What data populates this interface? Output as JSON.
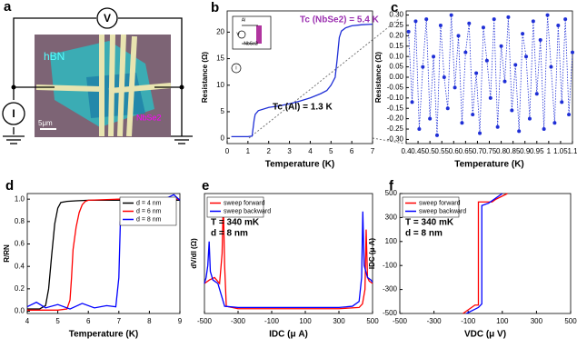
{
  "panel_a": {
    "panel": "a",
    "meter_v": "V",
    "meter_i": "I",
    "hbn": "hBN",
    "nbse2": "NbSe2",
    "scale": "5μm"
  },
  "chart_data": [
    {
      "type": "line",
      "panel": "b",
      "xlabel": "Temperature (K)",
      "ylabel": "Resistance (Ω)",
      "xlim": [
        0,
        7
      ],
      "xticks": [
        0,
        1,
        2,
        3,
        4,
        5,
        6,
        7
      ],
      "ylim": [
        -1,
        24
      ],
      "yticks": [
        0,
        5,
        10,
        15,
        20
      ],
      "annotations": [
        "Tc (NbSe2) = 5.4 K",
        "Tc (Al) = 1.3 K"
      ],
      "inset_labels": [
        "Al",
        "V",
        "I",
        "NbSe2"
      ],
      "series": [
        {
          "color": "#1f2fd6",
          "x": [
            0.2,
            0.5,
            1.0,
            1.2,
            1.3,
            1.35,
            1.5,
            2,
            2.5,
            3,
            3.5,
            4,
            4.5,
            4.8,
            5.0,
            5.2,
            5.3,
            5.4,
            5.5,
            5.7,
            6,
            6.5,
            7
          ],
          "values": [
            0.3,
            0.3,
            0.3,
            0.4,
            3.5,
            4.5,
            5.2,
            5.8,
            6.1,
            6.5,
            7.0,
            7.6,
            8.4,
            9.0,
            10.0,
            11.5,
            15,
            19,
            20.2,
            20.8,
            21.2,
            21.4,
            21.5
          ]
        }
      ]
    },
    {
      "type": "line",
      "panel": "c",
      "xlabel": "Temperature (K)",
      "ylabel": "Resistance (Ω)",
      "line_style": "dotted",
      "markers": true,
      "xlim": [
        0.4,
        1.1
      ],
      "xticks": [
        0.4,
        0.45,
        0.5,
        0.55,
        0.6,
        0.65,
        0.7,
        0.75,
        0.8,
        0.85,
        0.9,
        0.95,
        1,
        1.05,
        1.1
      ],
      "ylim": [
        -0.32,
        0.32
      ],
      "yticks": [
        {
          "value": -0.3,
          "label": "-0.30"
        },
        {
          "value": -0.25,
          "label": "-0.25"
        },
        {
          "value": -0.2,
          "label": "-0.20"
        },
        {
          "value": -0.15,
          "label": "-0.15"
        },
        {
          "value": -0.1,
          "label": "-0.10"
        },
        {
          "value": -0.05,
          "label": "-0.05"
        },
        {
          "value": 0,
          "label": "0.00"
        },
        {
          "value": 0.05,
          "label": "0.05"
        },
        {
          "value": 0.1,
          "label": "0.10"
        },
        {
          "value": 0.15,
          "label": "0.15"
        },
        {
          "value": 0.2,
          "label": "0.20"
        },
        {
          "value": 0.25,
          "label": "0.25"
        },
        {
          "value": 0.3,
          "label": "0.30"
        }
      ],
      "series": [
        {
          "color": "#1f2fd6",
          "x": [
            0.41,
            0.425,
            0.44,
            0.455,
            0.47,
            0.485,
            0.5,
            0.515,
            0.53,
            0.545,
            0.56,
            0.575,
            0.59,
            0.605,
            0.62,
            0.635,
            0.65,
            0.665,
            0.68,
            0.695,
            0.71,
            0.725,
            0.74,
            0.755,
            0.77,
            0.785,
            0.8,
            0.815,
            0.83,
            0.845,
            0.86,
            0.875,
            0.89,
            0.905,
            0.92,
            0.935,
            0.95,
            0.965,
            0.98,
            0.995,
            1.01,
            1.025,
            1.04,
            1.055,
            1.07,
            1.085,
            1.1
          ],
          "values": [
            0.22,
            -0.12,
            0.27,
            -0.25,
            0.05,
            0.28,
            -0.2,
            0.1,
            -0.28,
            0.25,
            0.0,
            -0.15,
            0.3,
            -0.05,
            0.2,
            -0.22,
            0.12,
            0.26,
            -0.18,
            0.02,
            -0.27,
            0.24,
            0.08,
            -0.1,
            0.28,
            -0.24,
            0.15,
            -0.02,
            0.29,
            -0.16,
            0.06,
            -0.26,
            0.21,
            0.1,
            -0.2,
            0.27,
            -0.08,
            0.18,
            -0.25,
            0.3,
            0.05,
            -0.22,
            0.25,
            -0.12,
            0.28,
            -0.18,
            0.12
          ]
        }
      ]
    },
    {
      "type": "line",
      "panel": "d",
      "xlabel": "Temperature (K)",
      "ylabel": "R/RN",
      "legend": "upper right",
      "xlim": [
        4,
        9
      ],
      "xticks": [
        4,
        5,
        6,
        7,
        8,
        9
      ],
      "ylim": [
        -0.02,
        1.05
      ],
      "yticks": [
        {
          "value": 0,
          "label": "0.0"
        },
        0.2,
        0.4,
        0.6,
        0.8,
        {
          "value": 1,
          "label": "1.0"
        }
      ],
      "series": [
        {
          "name": "d = 4 nm",
          "color": "#000000",
          "x": [
            4,
            4.4,
            4.6,
            4.7,
            4.8,
            4.9,
            5.0,
            5.1,
            5.3,
            5.6,
            6,
            7,
            8,
            9
          ],
          "values": [
            0.02,
            0.02,
            0.05,
            0.2,
            0.5,
            0.78,
            0.92,
            0.97,
            0.98,
            0.985,
            0.99,
            0.99,
            0.99,
            0.99
          ]
        },
        {
          "name": "d = 6 nm",
          "color": "#ff0000",
          "x": [
            4,
            5,
            5.3,
            5.4,
            5.45,
            5.5,
            5.6,
            5.7,
            5.8,
            5.9,
            6,
            7,
            8,
            9
          ],
          "values": [
            0.01,
            0.01,
            0.02,
            0.1,
            0.3,
            0.55,
            0.75,
            0.88,
            0.95,
            0.98,
            0.99,
            1.0,
            1.0,
            1.0
          ]
        },
        {
          "name": "d = 8 nm",
          "color": "#0000ff",
          "x": [
            4,
            4.3,
            4.6,
            5,
            5.4,
            5.8,
            6.2,
            6.6,
            6.9,
            7.0,
            7.05,
            7.2,
            7.5,
            8,
            8.5,
            8.8,
            9
          ],
          "values": [
            0.04,
            0.08,
            0.03,
            0.06,
            0.02,
            0.07,
            0.03,
            0.05,
            0.04,
            0.3,
            0.8,
            0.95,
            0.98,
            0.97,
            1.0,
            1.04,
            0.99
          ]
        }
      ]
    },
    {
      "type": "line",
      "panel": "e",
      "xlabel": "IDC (μ A)",
      "ylabel": "dV/dI (Ω)",
      "legend": "upper left",
      "xlim": [
        -500,
        500
      ],
      "xticks": [
        -500,
        -300,
        -100,
        100,
        300,
        500
      ],
      "ylim": [
        0,
        10
      ],
      "annotations": [
        "T = 340 mK",
        "d = 8 nm"
      ],
      "series": [
        {
          "name": "sweep forward",
          "color": "#ff0000",
          "x": [
            -500,
            -470,
            -440,
            -410,
            -395,
            -388,
            -380,
            -370,
            -300,
            0,
            300,
            420,
            440,
            455,
            462,
            470,
            480,
            500
          ],
          "values": [
            2.5,
            2.8,
            3,
            2.5,
            5,
            9.5,
            4,
            0.6,
            0.4,
            0.4,
            0.4,
            0.5,
            0.8,
            2,
            7,
            3,
            2.7,
            2.5
          ]
        },
        {
          "name": "sweep backward",
          "color": "#0000ff",
          "x": [
            -500,
            -490,
            -480,
            -472,
            -465,
            -450,
            -420,
            -380,
            -300,
            0,
            300,
            380,
            420,
            435,
            442,
            450,
            470,
            490,
            500
          ],
          "values": [
            2.5,
            3,
            4,
            6,
            3.5,
            2.8,
            2.5,
            0.6,
            0.5,
            0.5,
            0.5,
            0.6,
            1,
            3,
            8.5,
            4,
            3,
            2.8,
            2.6
          ]
        }
      ]
    },
    {
      "type": "line",
      "panel": "f",
      "xlabel": "VDC (μ V)",
      "ylabel": "IDC (μ A)",
      "legend": "upper left",
      "xlim": [
        -500,
        500
      ],
      "xticks": [
        -500,
        -300,
        -100,
        100,
        300,
        500
      ],
      "ylim": [
        -500,
        500
      ],
      "yticks": [
        -500,
        -300,
        -100,
        100,
        300,
        500
      ],
      "annotations": [
        "T = 340 mK",
        "d = 8 nm"
      ],
      "series": [
        {
          "name": "sweep forward",
          "color": "#ff0000",
          "x": [
            -130,
            -60,
            -40,
            -40,
            40,
            60,
            130
          ],
          "values": [
            -500,
            -430,
            -430,
            430,
            430,
            450,
            500
          ]
        },
        {
          "name": "sweep backward",
          "color": "#0000ff",
          "x": [
            -110,
            -40,
            -20,
            -20,
            20,
            100
          ],
          "values": [
            -500,
            -450,
            -420,
            400,
            420,
            500
          ]
        }
      ]
    }
  ]
}
